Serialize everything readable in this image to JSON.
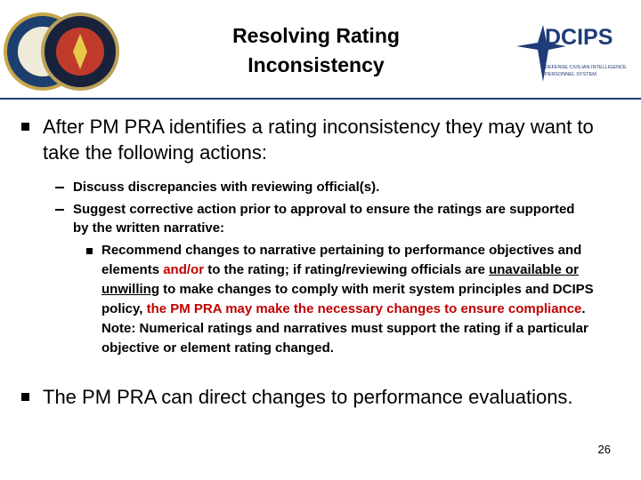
{
  "header": {
    "title_lines": [
      "Resolving Rating",
      "Inconsistency"
    ],
    "logo_text": "DCIPS",
    "logo_subtitle_lines": [
      "DEFENSE CIVILIAN INTELLIGENCE",
      "PERSONNEL SYSTEM"
    ]
  },
  "bullets": [
    {
      "text": "After PM PRA identifies a rating inconsistency they may want to take the following actions:",
      "sub": [
        {
          "text": "Discuss discrepancies with reviewing official(s)."
        },
        {
          "text": "Suggest corrective action prior to approval to ensure the ratings are supported by the written narrative:",
          "sub": [
            {
              "segments": [
                {
                  "text": "Recommend changes to narrative pertaining to performance objectives and elements "
                },
                {
                  "text": "and/or",
                  "style": "red"
                },
                {
                  "text": " to the rating; if rating/reviewing officials are "
                },
                {
                  "text": "unavailable or unwilling",
                  "style": "underline"
                },
                {
                  "text": " to make changes to comply with merit system principles and DCIPS policy, "
                },
                {
                  "text": "the PM PRA may make the necessary changes to ensure compliance",
                  "style": "red"
                },
                {
                  "text": ".  Note: Numerical ratings and narratives must support the rating if a particular objective or element rating changed."
                }
              ]
            }
          ]
        }
      ]
    },
    {
      "text": "The PM PRA can direct changes to performance evaluations."
    }
  ],
  "page_number": 26
}
